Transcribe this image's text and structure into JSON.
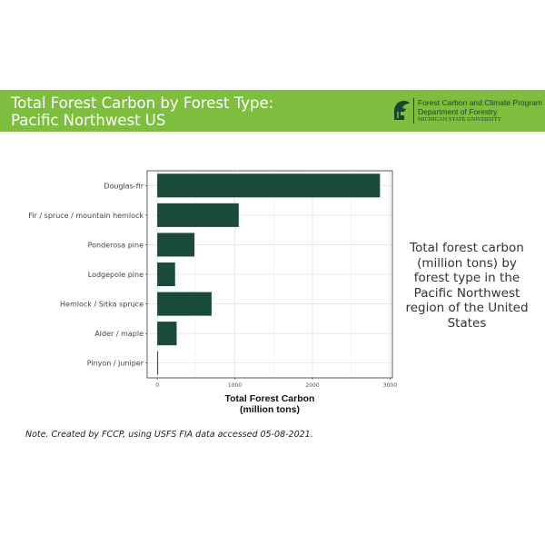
{
  "banner": {
    "title_line1": "Total Forest Carbon by Forest Type:",
    "title_line2": "Pacific Northwest US",
    "background": "#7dbe3f"
  },
  "logo": {
    "icon": "spartan-helmet-icon",
    "line1": "Forest Carbon and Climate Program",
    "line2": "Department of Forestry",
    "line3": "MICHIGAN STATE UNIVERSITY",
    "color": "#1b4332"
  },
  "side_text": "Total forest carbon (million tons) by forest type in the Pacific Northwest region of the United States",
  "note": "Note. Created by FCCP, using USFS FIA data accessed 05-08-2021.",
  "chart_data": {
    "type": "bar",
    "orientation": "horizontal",
    "categories": [
      "Douglas-fir",
      "Fir / spruce / mountain hemlock",
      "Ponderosa pine",
      "Lodgepole pine",
      "Hemlock / Sitka spruce",
      "Alder / maple",
      "Pinyon / juniper"
    ],
    "values": [
      2870,
      1050,
      480,
      230,
      700,
      250,
      10
    ],
    "xlabel_line1": "Total Forest Carbon",
    "xlabel_line2": "(million tons)",
    "xlim": [
      -130,
      3030
    ],
    "xticks": [
      0,
      1000,
      2000,
      3000
    ],
    "grid": true,
    "bar_color": "#1a4a3b"
  }
}
